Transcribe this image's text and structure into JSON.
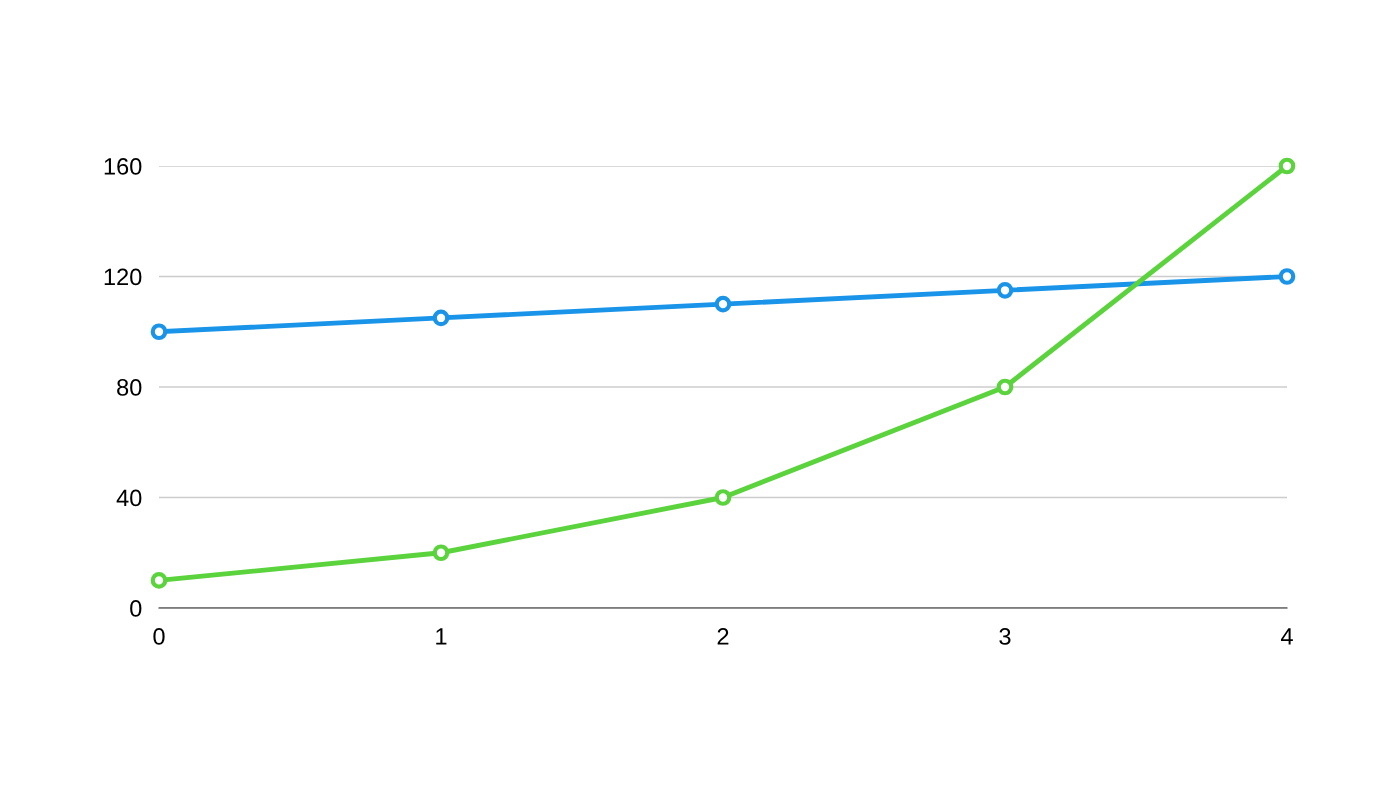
{
  "chart_data": {
    "type": "line",
    "x": [
      0,
      1,
      2,
      3,
      4
    ],
    "series": [
      {
        "color": "#1a94e8",
        "values": [
          100,
          105,
          110,
          115,
          120
        ]
      },
      {
        "color": "#5ad33c",
        "values": [
          10,
          20,
          40,
          80,
          160
        ]
      }
    ],
    "xlim": [
      0,
      4
    ],
    "xticks": [
      0,
      1,
      2,
      3,
      4
    ],
    "ylim": [
      0,
      160
    ],
    "yticks": [
      0,
      40,
      80,
      120,
      160
    ],
    "grid": "y",
    "marker": "circle",
    "line_style": "solid"
  }
}
